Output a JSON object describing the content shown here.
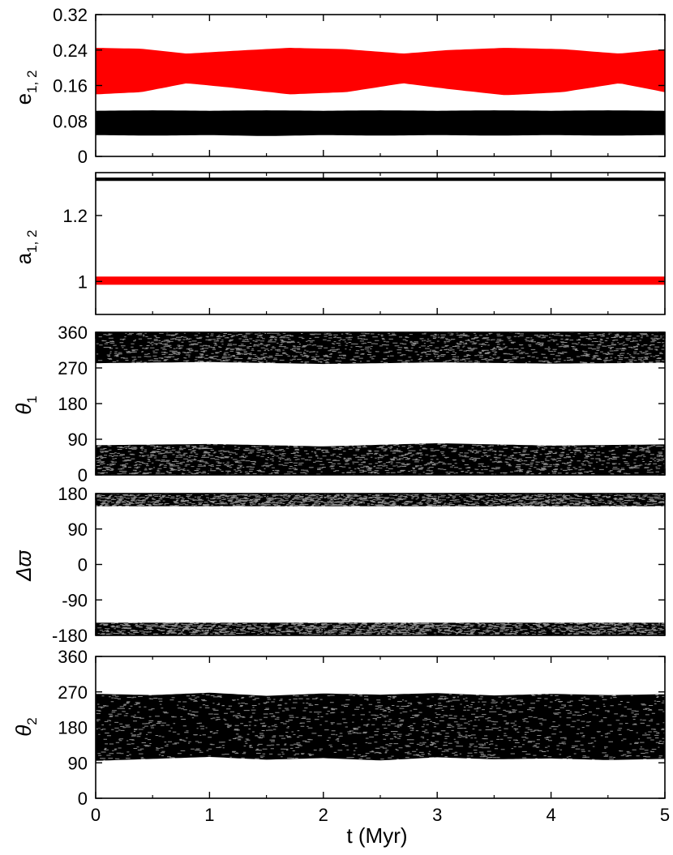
{
  "chart_data": [
    {
      "type": "line",
      "ylabel": "e",
      "ylabel_sub": "1, 2",
      "ylabel_italic": false,
      "ylim": [
        0,
        0.32
      ],
      "yticks": [
        0,
        0.08,
        0.16,
        0.24,
        0.32
      ],
      "ytick_labels": [
        "0",
        "0.08",
        "0.16",
        "0.24",
        "0.32"
      ],
      "xlim": [
        0,
        5
      ],
      "grid": false,
      "series": [
        {
          "color": "#000000",
          "x": [
            0,
            0.5,
            1,
            1.5,
            2,
            2.5,
            3,
            3.5,
            4,
            4.5,
            5
          ],
          "min": [
            0.048,
            0.047,
            0.048,
            0.046,
            0.048,
            0.047,
            0.048,
            0.047,
            0.048,
            0.047,
            0.048
          ],
          "max": [
            0.103,
            0.104,
            0.103,
            0.104,
            0.103,
            0.104,
            0.103,
            0.104,
            0.103,
            0.104,
            0.103
          ]
        },
        {
          "color": "#ff0000",
          "x": [
            0,
            0.4,
            0.8,
            1.2,
            1.7,
            2.2,
            2.7,
            3.1,
            3.6,
            4.1,
            4.6,
            5
          ],
          "min": [
            0.14,
            0.145,
            0.165,
            0.155,
            0.14,
            0.145,
            0.165,
            0.152,
            0.138,
            0.145,
            0.165,
            0.145
          ],
          "max": [
            0.245,
            0.243,
            0.232,
            0.238,
            0.245,
            0.242,
            0.232,
            0.24,
            0.245,
            0.242,
            0.232,
            0.242
          ]
        }
      ]
    },
    {
      "type": "line",
      "ylabel": "a",
      "ylabel_sub": "1, 2",
      "ylabel_italic": false,
      "ylim": [
        0.9,
        1.33
      ],
      "yticks": [
        1,
        1.2
      ],
      "ytick_labels": [
        "1",
        "1.2"
      ],
      "xlim": [
        0,
        5
      ],
      "grid": false,
      "series": [
        {
          "color": "#000000",
          "x": [
            0,
            5
          ],
          "min": [
            1.305,
            1.305
          ],
          "max": [
            1.315,
            1.315
          ]
        },
        {
          "color": "#ff0000",
          "x": [
            0,
            5
          ],
          "min": [
            0.99,
            0.99
          ],
          "max": [
            1.015,
            1.015
          ]
        }
      ]
    },
    {
      "type": "line",
      "ylabel": "θ",
      "ylabel_sub": "1",
      "ylabel_italic": true,
      "ylim": [
        0,
        360
      ],
      "yticks": [
        0,
        90,
        180,
        270,
        360
      ],
      "ytick_labels": [
        "0",
        "90",
        "180",
        "270",
        "360"
      ],
      "xlim": [
        0,
        5
      ],
      "grid": false,
      "series": [
        {
          "color": "#000000",
          "x": [
            0,
            1,
            2,
            3,
            4,
            5
          ],
          "min": [
            0,
            0,
            0,
            0,
            0,
            0
          ],
          "max": [
            75,
            78,
            72,
            80,
            74,
            77
          ]
        },
        {
          "color": "#000000",
          "x": [
            0,
            1,
            2,
            3,
            4,
            5
          ],
          "min": [
            282,
            285,
            280,
            284,
            281,
            283
          ],
          "max": [
            360,
            360,
            360,
            360,
            360,
            360
          ]
        }
      ]
    },
    {
      "type": "line",
      "ylabel": "Δϖ",
      "ylabel_sub": "",
      "ylabel_italic": true,
      "ylim": [
        -180,
        180
      ],
      "yticks": [
        -180,
        -90,
        0,
        90,
        180
      ],
      "ytick_labels": [
        "-180",
        "-90",
        "0",
        "90",
        "180"
      ],
      "xlim": [
        0,
        5
      ],
      "grid": false,
      "series": [
        {
          "color": "#000000",
          "x": [
            0,
            5
          ],
          "min": [
            148,
            148
          ],
          "max": [
            180,
            180
          ]
        },
        {
          "color": "#000000",
          "x": [
            0,
            5
          ],
          "min": [
            -180,
            -180
          ],
          "max": [
            -148,
            -148
          ]
        }
      ]
    },
    {
      "type": "line",
      "ylabel": "θ",
      "ylabel_sub": "2",
      "ylabel_italic": true,
      "ylim": [
        0,
        360
      ],
      "yticks": [
        0,
        90,
        180,
        270,
        360
      ],
      "ytick_labels": [
        "0",
        "90",
        "180",
        "270",
        "360"
      ],
      "xlim": [
        0,
        5
      ],
      "xticks": [
        0,
        1,
        2,
        3,
        4,
        5
      ],
      "xtick_labels": [
        "0",
        "1",
        "2",
        "3",
        "4",
        "5"
      ],
      "xlabel": "t (Myr)",
      "grid": false,
      "series": [
        {
          "color": "#000000",
          "x": [
            0,
            0.5,
            1,
            1.5,
            2,
            2.5,
            3,
            3.5,
            4,
            4.5,
            5
          ],
          "min": [
            95,
            100,
            105,
            98,
            102,
            96,
            104,
            99,
            101,
            97,
            100
          ],
          "max": [
            265,
            262,
            268,
            260,
            266,
            263,
            267,
            261,
            265,
            262,
            264
          ]
        }
      ]
    }
  ]
}
